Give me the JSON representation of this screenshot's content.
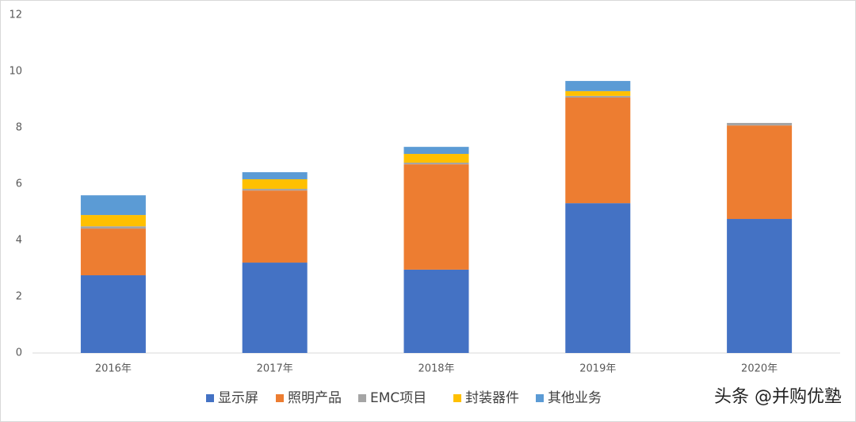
{
  "chart_data": {
    "type": "stacked_bar",
    "categories": [
      "2016年",
      "2017年",
      "2018年",
      "2019年",
      "2020年"
    ],
    "series": [
      {
        "name": "显示屏",
        "color": "#4472c4",
        "values": [
          2.76,
          3.21,
          2.96,
          5.32,
          4.76
        ]
      },
      {
        "name": "照明产品",
        "color": "#ed7d31",
        "values": [
          1.66,
          2.56,
          3.74,
          3.75,
          3.32
        ]
      },
      {
        "name": "EMC项目",
        "color": "#a5a5a5",
        "values": [
          0.08,
          0.06,
          0.06,
          0.06,
          0.09
        ]
      },
      {
        "name": "封装器件",
        "color": "#ffc000",
        "values": [
          0.4,
          0.34,
          0.31,
          0.17,
          0
        ]
      },
      {
        "name": "其他业务",
        "color": "#5b9bd5",
        "values": [
          0.7,
          0.25,
          0.25,
          0.36,
          0
        ]
      }
    ],
    "ylim": [
      0,
      12
    ],
    "yticks": [
      0,
      2,
      4,
      6,
      8,
      10,
      12
    ],
    "grid": false,
    "legend": "bottom",
    "watermark": "头条 @并购优塾"
  }
}
